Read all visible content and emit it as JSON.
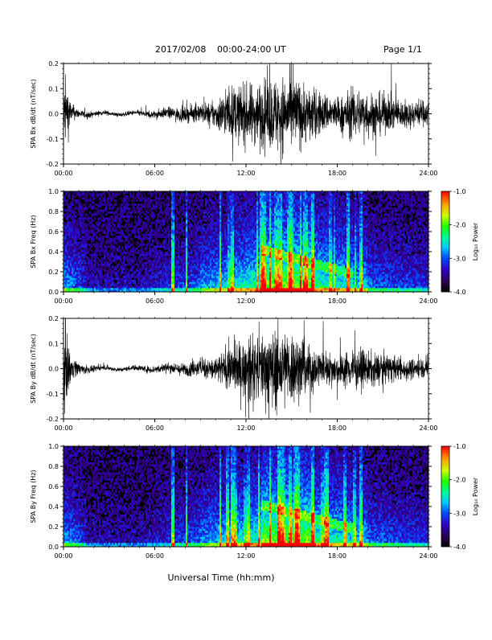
{
  "header": {
    "date": "2017/02/08",
    "time_range": "00:00-24:00 UT",
    "page": "Page 1/1"
  },
  "xlabel": "Universal Time (hh:mm)",
  "chart_data": [
    {
      "type": "line",
      "ylabel": "SPA Bx dB/dt (nT/sec)",
      "ylim": [
        -0.2,
        0.2
      ],
      "yticks": [
        "0.2",
        "0.1",
        "0.0",
        "-0.1",
        "-0.2"
      ],
      "xlim": [
        0,
        24
      ],
      "xticks": [
        "00:00",
        "06:00",
        "12:00",
        "18:00",
        "24:00"
      ],
      "envelope_hours": [
        0,
        0.25,
        0.5,
        1,
        2,
        3,
        4,
        5,
        6,
        7,
        8,
        9,
        10,
        10.5,
        11,
        12,
        13,
        13.5,
        14,
        15,
        16,
        17,
        18,
        19,
        20,
        21,
        22,
        23,
        24
      ],
      "envelope_amplitude": [
        0.22,
        0.2,
        0.06,
        0.03,
        0.018,
        0.015,
        0.014,
        0.02,
        0.028,
        0.04,
        0.05,
        0.065,
        0.09,
        0.15,
        0.18,
        0.2,
        0.22,
        0.24,
        0.26,
        0.26,
        0.2,
        0.14,
        0.11,
        0.17,
        0.16,
        0.14,
        0.1,
        0.09,
        0.09
      ]
    },
    {
      "type": "heatmap",
      "ylabel": "SPA Bx Freq (Hz)",
      "ylim": [
        0,
        1
      ],
      "yticks": [
        "1.0",
        "0.8",
        "0.6",
        "0.4",
        "0.2",
        "0.0"
      ],
      "xlim": [
        0,
        24
      ],
      "xticks": [
        "00:00",
        "06:00",
        "12:00",
        "18:00",
        "24:00"
      ],
      "colorbar_label": "Log₁₀ Power",
      "colorbar_range": [
        -4,
        -1
      ],
      "colorbar_ticks": [
        "-1.0",
        "-2.0",
        "-3.0",
        "-4.0"
      ]
    },
    {
      "type": "line",
      "ylabel": "SPA By dB/dt (nT/sec)",
      "ylim": [
        -0.2,
        0.2
      ],
      "yticks": [
        "0.2",
        "0.1",
        "0.0",
        "-0.1",
        "-0.2"
      ],
      "xlim": [
        0,
        24
      ],
      "xticks": [
        "00:00",
        "06:00",
        "12:00",
        "18:00",
        "24:00"
      ],
      "envelope_hours": [
        0,
        0.25,
        0.5,
        1,
        2,
        3,
        4,
        5,
        6,
        7,
        8,
        9,
        10,
        10.5,
        11,
        12,
        13,
        13.5,
        14,
        15,
        16,
        17,
        18,
        19,
        20,
        21,
        22,
        23,
        24
      ],
      "envelope_amplitude": [
        0.24,
        0.22,
        0.08,
        0.04,
        0.018,
        0.015,
        0.015,
        0.02,
        0.028,
        0.035,
        0.045,
        0.06,
        0.09,
        0.12,
        0.16,
        0.2,
        0.24,
        0.26,
        0.28,
        0.26,
        0.18,
        0.12,
        0.1,
        0.14,
        0.12,
        0.1,
        0.08,
        0.07,
        0.07
      ]
    },
    {
      "type": "heatmap",
      "ylabel": "SPA By Freq (Hz)",
      "ylim": [
        0,
        1
      ],
      "yticks": [
        "1.0",
        "0.8",
        "0.6",
        "0.4",
        "0.2",
        "0.0"
      ],
      "xlim": [
        0,
        24
      ],
      "xticks": [
        "00:00",
        "06:00",
        "12:00",
        "18:00",
        "24:00"
      ],
      "colorbar_label": "Log₁₀ Power",
      "colorbar_range": [
        -4,
        -1
      ],
      "colorbar_ticks": [
        "-1.0",
        "-2.0",
        "-3.0",
        "-4.0"
      ]
    }
  ]
}
